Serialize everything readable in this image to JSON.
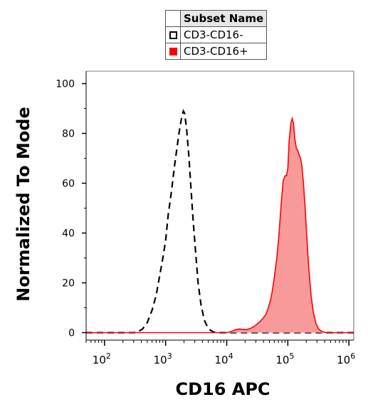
{
  "chart_data": {
    "type": "area",
    "xlabel": "CD16 APC",
    "ylabel": "Normalized To Mode",
    "x_scale": "log",
    "xlim": [
      50,
      1200000
    ],
    "ylim": [
      -3,
      105
    ],
    "y_ticks": [
      0,
      20,
      40,
      60,
      80,
      100
    ],
    "x_ticks": [
      {
        "value": 100,
        "base": "10",
        "exp": "2"
      },
      {
        "value": 1000,
        "base": "10",
        "exp": "3"
      },
      {
        "value": 10000,
        "base": "10",
        "exp": "4"
      },
      {
        "value": 100000,
        "base": "10",
        "exp": "5"
      },
      {
        "value": 1000000,
        "base": "10",
        "exp": "6"
      }
    ],
    "legend": {
      "header": "Subset Name",
      "entries": [
        {
          "label": "CD3-CD16-",
          "style": "open-dashed",
          "color": "#000000"
        },
        {
          "label": "CD3-CD16+",
          "style": "filled",
          "color": "#ff0000"
        }
      ]
    },
    "series": [
      {
        "name": "CD3-CD16-",
        "style": "dashed",
        "color": "#000000",
        "x": [
          50,
          300,
          360,
          420,
          500,
          600,
          700,
          800,
          900,
          1000,
          1100,
          1250,
          1400,
          1550,
          1700,
          1850,
          1950,
          2050,
          2200,
          2400,
          2600,
          2800,
          3100,
          3400,
          3800,
          4300,
          4800,
          5400,
          6000,
          7000,
          10000,
          100000,
          1200000
        ],
        "y": [
          0,
          0,
          0.5,
          1.5,
          4,
          9,
          15,
          23,
          30,
          37,
          47,
          57,
          67,
          75,
          82,
          87,
          89,
          88,
          82,
          71,
          58,
          46,
          32,
          20,
          11,
          5,
          2.5,
          1,
          0.3,
          0,
          0,
          0,
          0
        ]
      },
      {
        "name": "CD3-CD16+",
        "style": "filled",
        "color": "#ff0000",
        "fill": "#f99a9a",
        "x": [
          50,
          10000,
          12000,
          14000,
          16000,
          18000,
          21000,
          25000,
          30000,
          35000,
          40000,
          44000,
          48000,
          52000,
          56000,
          60000,
          66000,
          72000,
          78000,
          84000,
          90000,
          95000,
          100000,
          105000,
          112000,
          118000,
          124000,
          130000,
          138000,
          146000,
          155000,
          162000,
          170000,
          180000,
          192000,
          205000,
          220000,
          240000,
          262000,
          290000,
          320000,
          360000,
          420000,
          500000,
          1200000
        ],
        "y": [
          0,
          0,
          0.5,
          1.2,
          1.5,
          1.3,
          1.2,
          1.8,
          3,
          4.5,
          6,
          7.5,
          10,
          13,
          17,
          22,
          30,
          40,
          52,
          61,
          63,
          63,
          66,
          77,
          84,
          86,
          84,
          78,
          74,
          73,
          71,
          70,
          67,
          60,
          50,
          38,
          26,
          15,
          8,
          3.5,
          1.5,
          0.5,
          0,
          0,
          0
        ]
      }
    ]
  }
}
